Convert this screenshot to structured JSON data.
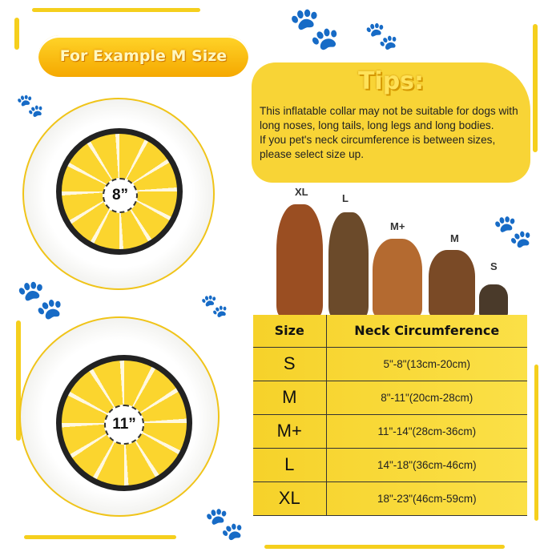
{
  "banner": {
    "label": "For Example M Size"
  },
  "collars": [
    {
      "measurement": "8”"
    },
    {
      "measurement": "11”"
    }
  ],
  "tips": {
    "title": "Tips:",
    "lines": [
      "This inflatable collar may not be suitable for dogs with long noses, long tails, long legs and long bodies.",
      "If you pet's neck circumference is between sizes, please select size up."
    ]
  },
  "dogs": [
    {
      "label": "XL"
    },
    {
      "label": "L"
    },
    {
      "label": "M+"
    },
    {
      "label": "M"
    },
    {
      "label": "S"
    }
  ],
  "size_table": {
    "headers": [
      "Size",
      "Neck Circumference"
    ],
    "rows": [
      [
        "S",
        "5\"-8\"(13cm-20cm)"
      ],
      [
        "M",
        "8\"-11\"(20cm-28cm)"
      ],
      [
        "M+",
        "11\"-14\"(28cm-36cm)"
      ],
      [
        "L",
        "14\"-18\"(36cm-46cm)"
      ],
      [
        "XL",
        "18\"-23\"(46cm-59cm)"
      ]
    ]
  },
  "colors": {
    "accent": "#f5cf1d",
    "table_bg": "#f8d82f",
    "text": "#222222"
  },
  "icons": [
    "paw-print-icon"
  ]
}
